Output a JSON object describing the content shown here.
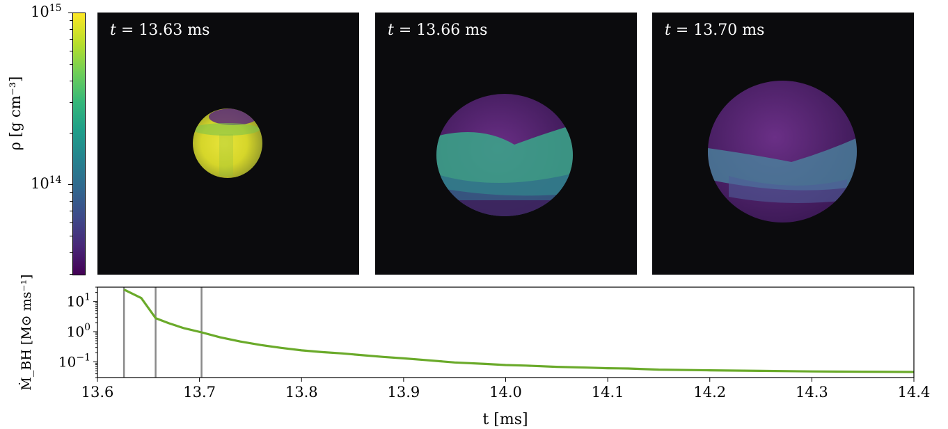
{
  "colorbar": {
    "label": "ρ [g cm⁻³]",
    "scale": "log",
    "range": [
      30000000000000.0,
      1000000000000000.0
    ],
    "colormap": "viridis",
    "tick_labels": [
      {
        "base": "10",
        "exp": "15",
        "value": 1000000000000000.0
      },
      {
        "base": "10",
        "exp": "14",
        "value": 100000000000000.0
      }
    ]
  },
  "panels": [
    {
      "label_var": "t",
      "label_value": "= 13.63 ms"
    },
    {
      "label_var": "t",
      "label_value": "= 13.66 ms"
    },
    {
      "label_var": "t",
      "label_value": "= 13.70 ms"
    }
  ],
  "chart_data": {
    "type": "line",
    "xlabel": "t [ms]",
    "ylabel": "Ṁ_BH [M⊙ ms⁻¹]",
    "yscale": "log",
    "xlim": [
      13.6,
      14.4
    ],
    "ylim": [
      0.03,
      30
    ],
    "color": "#6aaa2a",
    "grid": false,
    "x_ticks": [
      "13.6",
      "13.7",
      "13.8",
      "13.9",
      "14.0",
      "14.1",
      "14.2",
      "14.3",
      "14.4"
    ],
    "y_ticks": [
      {
        "base": "10",
        "exp": "1",
        "value": 10
      },
      {
        "base": "10",
        "exp": "0",
        "value": 1
      },
      {
        "base": "10",
        "exp": "−1",
        "value": 0.1
      }
    ],
    "vlines": [
      13.626,
      13.657,
      13.702
    ],
    "series": [
      {
        "x": [
          13.626,
          13.643,
          13.657,
          13.67,
          13.685,
          13.702,
          13.72,
          13.74,
          13.76,
          13.78,
          13.8,
          13.82,
          13.84,
          13.86,
          13.88,
          13.9,
          13.92,
          13.95,
          13.98,
          14.0,
          14.02,
          14.05,
          14.08,
          14.1,
          14.12,
          14.15,
          14.2,
          14.25,
          14.3,
          14.35,
          14.4
        ],
        "y": [
          25,
          13,
          2.8,
          1.9,
          1.3,
          0.95,
          0.65,
          0.47,
          0.36,
          0.29,
          0.24,
          0.21,
          0.19,
          0.165,
          0.145,
          0.13,
          0.115,
          0.095,
          0.085,
          0.078,
          0.075,
          0.068,
          0.064,
          0.061,
          0.06,
          0.055,
          0.052,
          0.05,
          0.048,
          0.047,
          0.046
        ]
      }
    ]
  }
}
